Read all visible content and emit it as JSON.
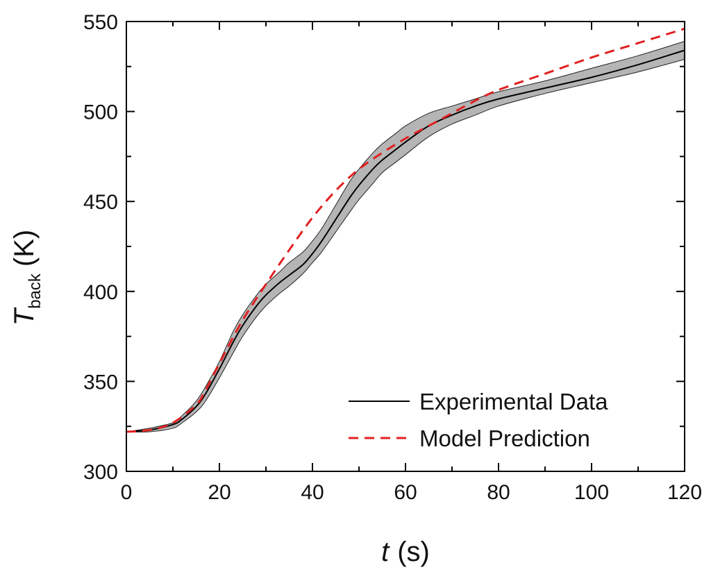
{
  "chart_data": {
    "type": "line",
    "xlabel": {
      "symbol": "t",
      "unit": "(s)"
    },
    "ylabel": {
      "symbol": "T",
      "subscript": "back",
      "unit": "(K)"
    },
    "xlim": [
      0,
      120
    ],
    "ylim": [
      300,
      550
    ],
    "xticks": [
      0,
      20,
      40,
      60,
      80,
      100,
      120
    ],
    "yticks": [
      300,
      350,
      400,
      450,
      500,
      550
    ],
    "grid": false,
    "legend_position": "bottom-right",
    "series": [
      {
        "name": "Experimental Data",
        "style": "solid",
        "color": "#000000",
        "band_color": "#b5b5b5",
        "x": [
          0,
          5,
          10,
          12,
          15,
          17,
          20,
          23,
          25,
          28,
          30,
          33,
          35,
          38,
          40,
          42,
          45,
          48,
          50,
          53,
          55,
          58,
          60,
          65,
          70,
          75,
          80,
          90,
          100,
          110,
          120
        ],
        "y": [
          322,
          323,
          326,
          329,
          336,
          343,
          357,
          372,
          381,
          392,
          398,
          405,
          409,
          415,
          421,
          428,
          440,
          452,
          459,
          468,
          473,
          479,
          483,
          492,
          498,
          503,
          507,
          513,
          519,
          526,
          534
        ],
        "lower": [
          322,
          322,
          324,
          327,
          333,
          339,
          352,
          366,
          375,
          386,
          392,
          399,
          403,
          410,
          416,
          422,
          433,
          444,
          451,
          460,
          466,
          472,
          476,
          486,
          493,
          498,
          503,
          510,
          516,
          522,
          529
        ],
        "upper": [
          322,
          324,
          327,
          331,
          339,
          347,
          361,
          378,
          387,
          398,
          404,
          411,
          416,
          422,
          428,
          435,
          448,
          461,
          468,
          477,
          482,
          488,
          492,
          499,
          503,
          507,
          511,
          517,
          524,
          531,
          539
        ]
      },
      {
        "name": "Model Prediction",
        "style": "dashed",
        "color": "#e02020",
        "x": [
          0,
          5,
          10,
          15,
          17,
          20,
          25,
          30,
          35,
          40,
          45,
          50,
          55,
          60,
          65,
          70,
          75,
          80,
          90,
          100,
          110,
          120
        ],
        "y": [
          322,
          323,
          327,
          337,
          345,
          360,
          384,
          404,
          423,
          441,
          456,
          468,
          477,
          485,
          492,
          499,
          506,
          512,
          521,
          530,
          538,
          546
        ]
      }
    ]
  }
}
